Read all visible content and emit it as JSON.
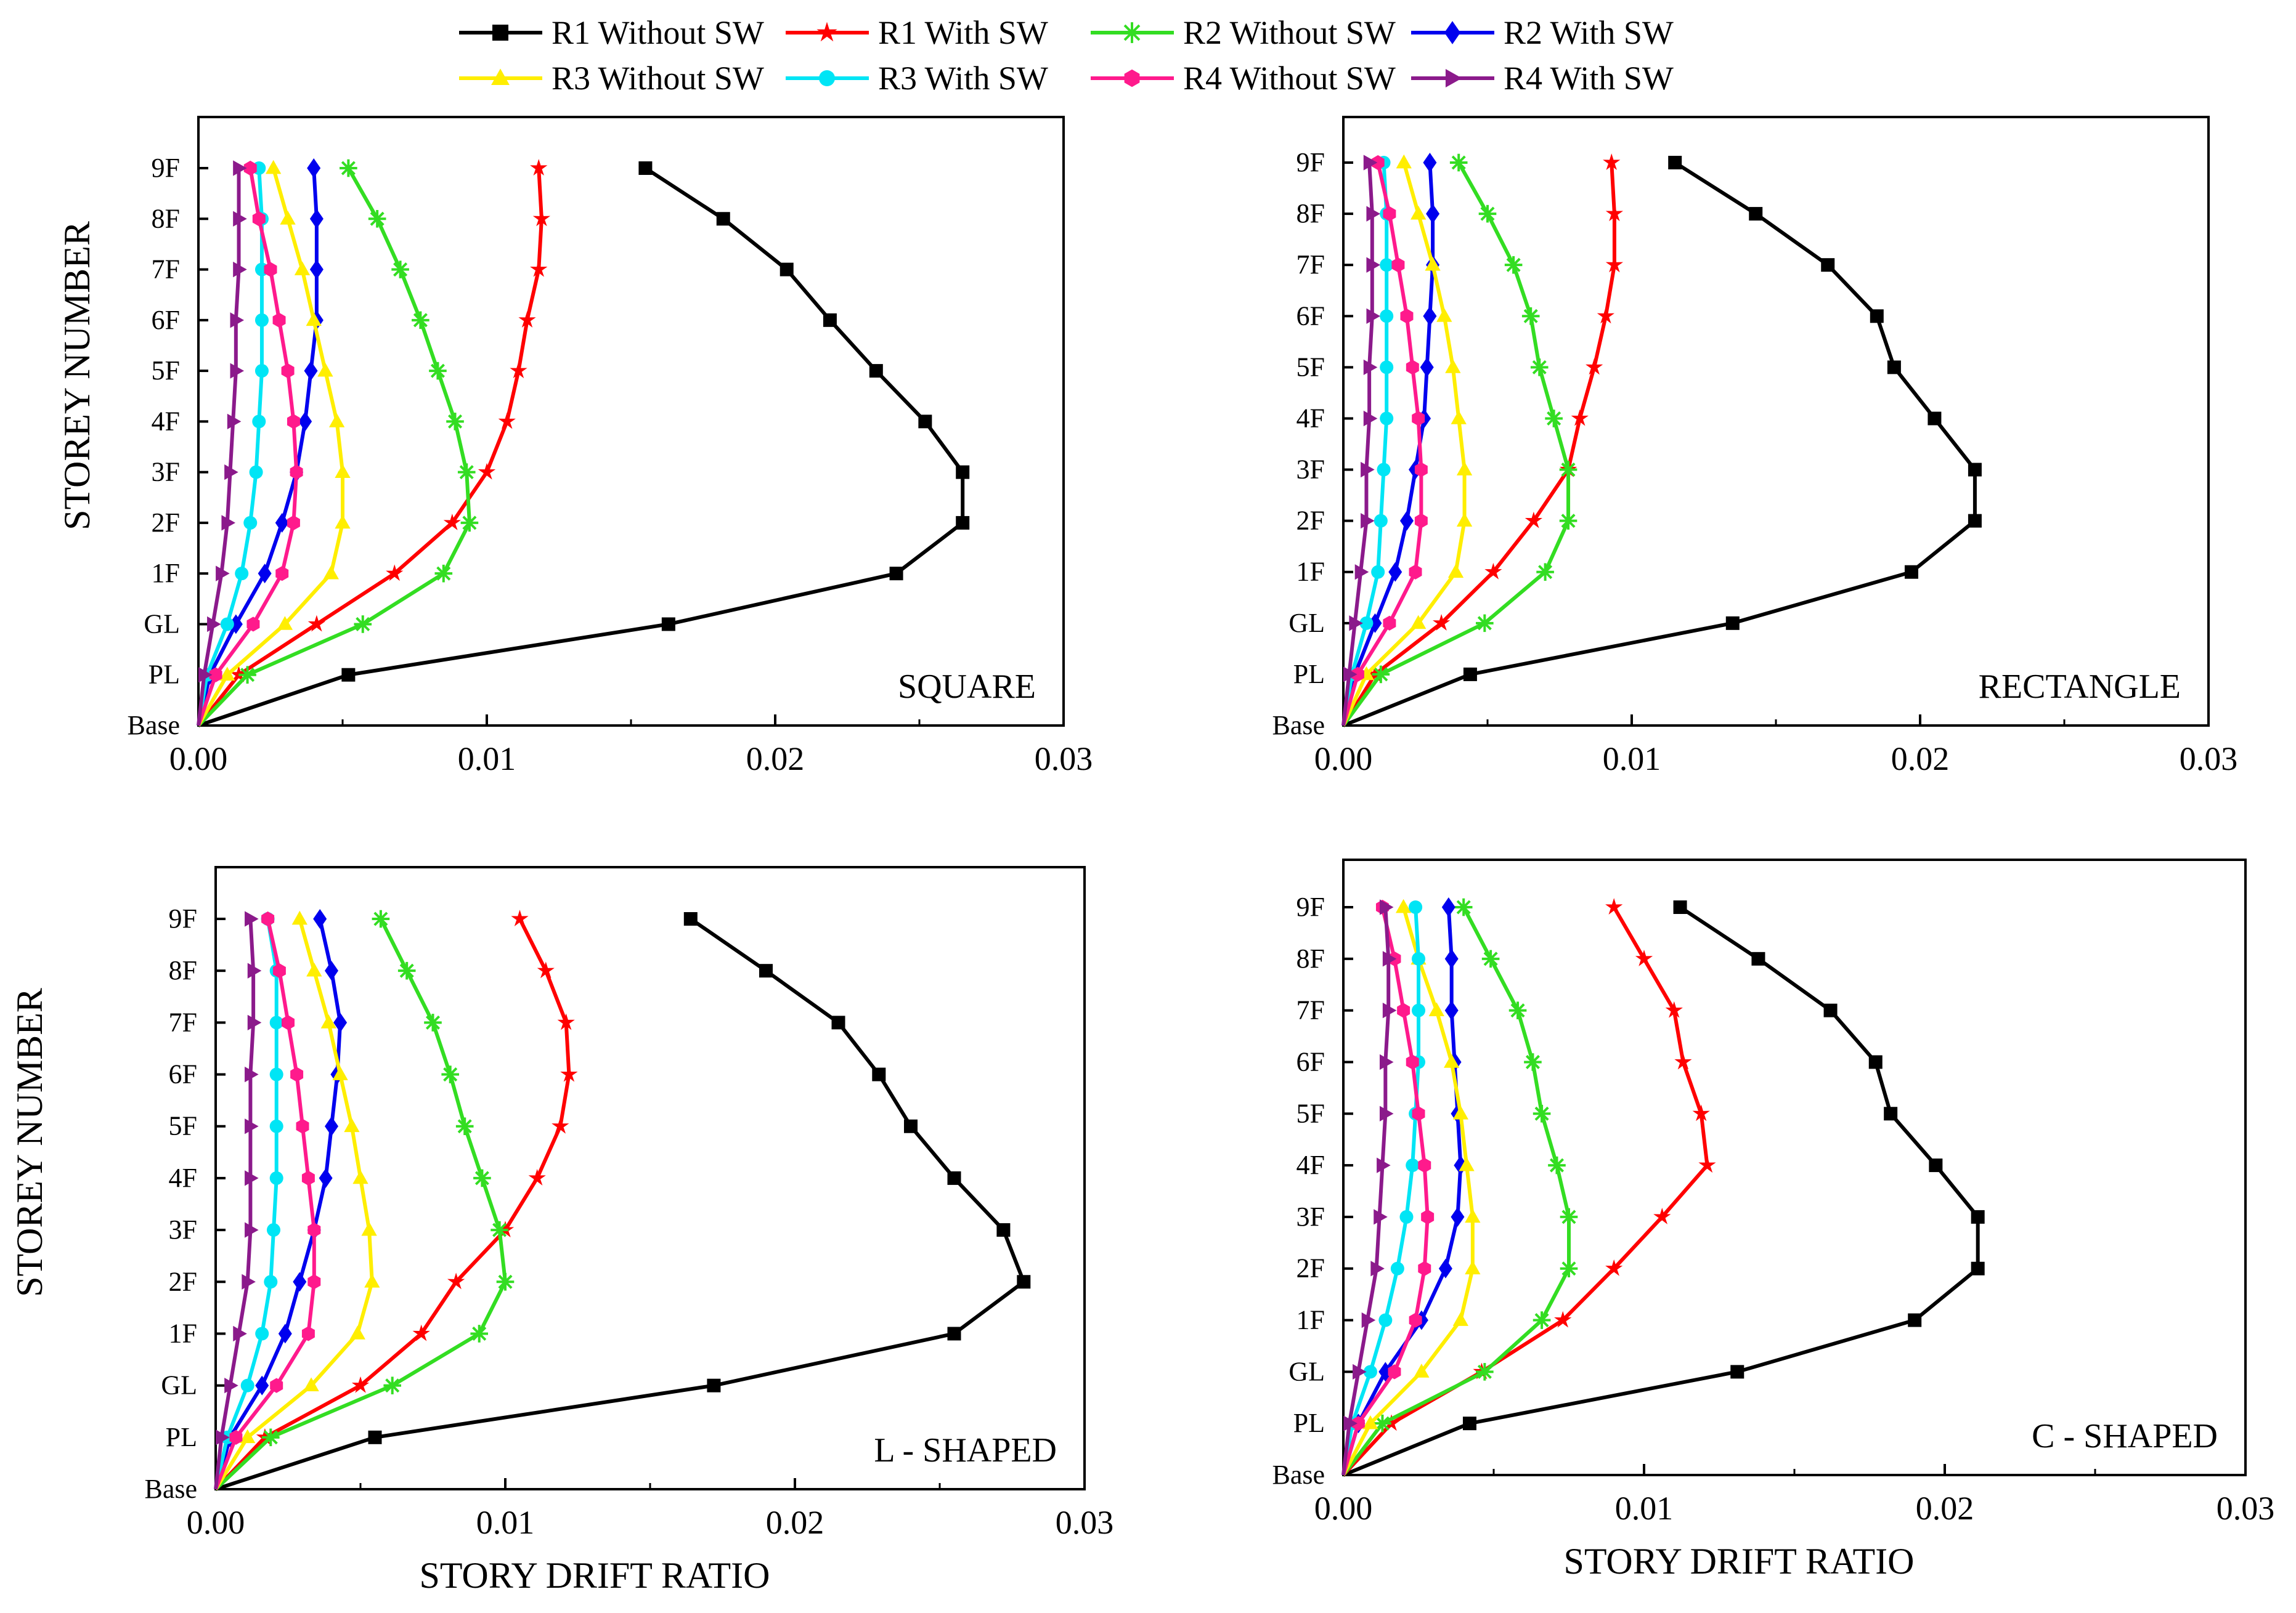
{
  "legend": [
    {
      "name": "R1 Without SW",
      "color": "#000000",
      "marker": "square"
    },
    {
      "name": "R1 With SW",
      "color": "#ff0000",
      "marker": "star"
    },
    {
      "name": "R2 Without SW",
      "color": "#33dd22",
      "marker": "asterisk"
    },
    {
      "name": "R2 With SW",
      "color": "#0000ee",
      "marker": "diamond"
    },
    {
      "name": "R3 Without SW",
      "color": "#ffee00",
      "marker": "triangle-up"
    },
    {
      "name": "R3 With SW",
      "color": "#00e5f5",
      "marker": "circle"
    },
    {
      "name": "R4 Without SW",
      "color": "#ff1a8c",
      "marker": "hexagon"
    },
    {
      "name": "R4 With SW",
      "color": "#8b1a8b",
      "marker": "triangle-right"
    }
  ],
  "chart_data": [
    {
      "type": "line",
      "panel_label": "SQUARE",
      "ylabel": "STOREY NUMBER",
      "xlabel": "",
      "xlim": [
        0,
        0.03
      ],
      "x_ticks": [
        "0.00",
        "0.01",
        "0.02",
        "0.03"
      ],
      "categories": [
        "Base",
        "PL",
        "GL",
        "1F",
        "2F",
        "3F",
        "4F",
        "5F",
        "6F",
        "7F",
        "8F",
        "9F"
      ],
      "series": [
        {
          "name": "R1 Without SW",
          "values": [
            0,
            0.0052,
            0.0163,
            0.0242,
            0.0265,
            0.0265,
            0.0252,
            0.0235,
            0.0219,
            0.0204,
            0.0182,
            0.0155
          ]
        },
        {
          "name": "R1 With SW",
          "values": [
            0,
            0.0014,
            0.0041,
            0.0068,
            0.0088,
            0.01,
            0.0107,
            0.0111,
            0.0114,
            0.0118,
            0.0119,
            0.0118
          ]
        },
        {
          "name": "R2 Without SW",
          "values": [
            0,
            0.0017,
            0.0057,
            0.0085,
            0.0094,
            0.0093,
            0.0089,
            0.0083,
            0.0077,
            0.007,
            0.0062,
            0.0052
          ]
        },
        {
          "name": "R2 With SW",
          "values": [
            0,
            0.0004,
            0.0013,
            0.0023,
            0.0029,
            0.0034,
            0.0037,
            0.0039,
            0.0041,
            0.0041,
            0.0041,
            0.004
          ]
        },
        {
          "name": "R3 Without SW",
          "values": [
            0,
            0.001,
            0.003,
            0.0046,
            0.005,
            0.005,
            0.0048,
            0.0044,
            0.004,
            0.0036,
            0.0031,
            0.0026
          ]
        },
        {
          "name": "R3 With SW",
          "values": [
            0,
            0.0003,
            0.001,
            0.0015,
            0.0018,
            0.002,
            0.0021,
            0.0022,
            0.0022,
            0.0022,
            0.0022,
            0.0021
          ]
        },
        {
          "name": "R4 Without SW",
          "values": [
            0,
            0.0006,
            0.0019,
            0.0029,
            0.0033,
            0.0034,
            0.0033,
            0.0031,
            0.0028,
            0.0025,
            0.0021,
            0.0018
          ]
        },
        {
          "name": "R4 With SW",
          "values": [
            0,
            0.0002,
            0.0005,
            0.0008,
            0.001,
            0.0011,
            0.0012,
            0.0013,
            0.0013,
            0.0014,
            0.0014,
            0.0014
          ]
        }
      ]
    },
    {
      "type": "line",
      "panel_label": "RECTANGLE",
      "ylabel": "",
      "xlabel": "",
      "xlim": [
        0,
        0.03
      ],
      "x_ticks": [
        "0.00",
        "0.01",
        "0.02",
        "0.03"
      ],
      "categories": [
        "Base",
        "PL",
        "GL",
        "1F",
        "2F",
        "3F",
        "4F",
        "5F",
        "6F",
        "7F",
        "8F",
        "9F"
      ],
      "series": [
        {
          "name": "R1 Without SW",
          "values": [
            0,
            0.0044,
            0.0135,
            0.0197,
            0.0219,
            0.0219,
            0.0205,
            0.0191,
            0.0185,
            0.0168,
            0.0143,
            0.0115
          ]
        },
        {
          "name": "R1 With SW",
          "values": [
            0,
            0.0011,
            0.0034,
            0.0052,
            0.0066,
            0.0078,
            0.0082,
            0.0087,
            0.0091,
            0.0094,
            0.0094,
            0.0093
          ]
        },
        {
          "name": "R2 Without SW",
          "values": [
            0,
            0.0013,
            0.0049,
            0.007,
            0.0078,
            0.0078,
            0.0073,
            0.0068,
            0.0065,
            0.0059,
            0.005,
            0.004
          ]
        },
        {
          "name": "R2 With SW",
          "values": [
            0,
            0.0004,
            0.0011,
            0.0018,
            0.0022,
            0.0025,
            0.0028,
            0.0029,
            0.003,
            0.0031,
            0.0031,
            0.003
          ]
        },
        {
          "name": "R3 Without SW",
          "values": [
            0,
            0.0008,
            0.0026,
            0.0039,
            0.0042,
            0.0042,
            0.004,
            0.0038,
            0.0035,
            0.0031,
            0.0026,
            0.0021
          ]
        },
        {
          "name": "R3 With SW",
          "values": [
            0,
            0.0003,
            0.0008,
            0.0012,
            0.0013,
            0.0014,
            0.0015,
            0.0015,
            0.0015,
            0.0015,
            0.0015,
            0.0014
          ]
        },
        {
          "name": "R4 Without SW",
          "values": [
            0,
            0.0005,
            0.0016,
            0.0025,
            0.0027,
            0.0027,
            0.0026,
            0.0024,
            0.0022,
            0.0019,
            0.0016,
            0.0012
          ]
        },
        {
          "name": "R4 With SW",
          "values": [
            0,
            0.0002,
            0.0004,
            0.0006,
            0.0008,
            0.0008,
            0.0009,
            0.0009,
            0.001,
            0.001,
            0.001,
            0.0009
          ]
        }
      ]
    },
    {
      "type": "line",
      "panel_label": "L - SHAPED",
      "ylabel": "STOREY NUMBER",
      "xlabel": "STORY DRIFT RATIO",
      "xlim": [
        0,
        0.03
      ],
      "x_ticks": [
        "0.00",
        "0.01",
        "0.02",
        "0.03"
      ],
      "categories": [
        "Base",
        "PL",
        "GL",
        "1F",
        "2F",
        "3F",
        "4F",
        "5F",
        "6F",
        "7F",
        "8F",
        "9F"
      ],
      "series": [
        {
          "name": "R1 Without SW",
          "values": [
            0,
            0.0055,
            0.0172,
            0.0255,
            0.0279,
            0.0272,
            0.0255,
            0.024,
            0.0229,
            0.0215,
            0.019,
            0.0164
          ]
        },
        {
          "name": "R1 With SW",
          "values": [
            0,
            0.0017,
            0.005,
            0.0071,
            0.0083,
            0.01,
            0.0111,
            0.0119,
            0.0122,
            0.0121,
            0.0114,
            0.0105
          ]
        },
        {
          "name": "R2 Without SW",
          "values": [
            0,
            0.0019,
            0.0061,
            0.0091,
            0.01,
            0.0098,
            0.0092,
            0.0086,
            0.0081,
            0.0075,
            0.0066,
            0.0057
          ]
        },
        {
          "name": "R2 With SW",
          "values": [
            0,
            0.0005,
            0.0016,
            0.0024,
            0.0029,
            0.0034,
            0.0038,
            0.004,
            0.0042,
            0.0043,
            0.004,
            0.0036
          ]
        },
        {
          "name": "R3 Without SW",
          "values": [
            0,
            0.0011,
            0.0033,
            0.0049,
            0.0054,
            0.0053,
            0.005,
            0.0047,
            0.0043,
            0.0039,
            0.0034,
            0.0029
          ]
        },
        {
          "name": "R3 With SW",
          "values": [
            0,
            0.0004,
            0.0011,
            0.0016,
            0.0019,
            0.002,
            0.0021,
            0.0021,
            0.0021,
            0.0021,
            0.0021,
            0.0018
          ]
        },
        {
          "name": "R4 Without SW",
          "values": [
            0,
            0.0007,
            0.0021,
            0.0032,
            0.0034,
            0.0034,
            0.0032,
            0.003,
            0.0028,
            0.0025,
            0.0022,
            0.0018
          ]
        },
        {
          "name": "R4 With SW",
          "values": [
            0,
            0.0002,
            0.0005,
            0.0008,
            0.0011,
            0.0012,
            0.0012,
            0.0012,
            0.0012,
            0.0013,
            0.0013,
            0.0012
          ]
        }
      ]
    },
    {
      "type": "line",
      "panel_label": "C - SHAPED",
      "ylabel": "",
      "xlabel": "STORY DRIFT RATIO",
      "xlim": [
        0,
        0.03
      ],
      "x_ticks": [
        "0.00",
        "0.01",
        "0.02",
        "0.03"
      ],
      "categories": [
        "Base",
        "PL",
        "GL",
        "1F",
        "2F",
        "3F",
        "4F",
        "5F",
        "6F",
        "7F",
        "8F",
        "9F"
      ],
      "series": [
        {
          "name": "R1 Without SW",
          "values": [
            0,
            0.0042,
            0.0131,
            0.019,
            0.0211,
            0.0211,
            0.0197,
            0.0182,
            0.0177,
            0.0162,
            0.0138,
            0.0112
          ]
        },
        {
          "name": "R1 With SW",
          "values": [
            0,
            0.0016,
            0.0046,
            0.0073,
            0.009,
            0.0106,
            0.0121,
            0.0119,
            0.0113,
            0.011,
            0.01,
            0.009
          ]
        },
        {
          "name": "R2 Without SW",
          "values": [
            0,
            0.0013,
            0.0047,
            0.0066,
            0.0075,
            0.0075,
            0.0071,
            0.0066,
            0.0063,
            0.0058,
            0.0049,
            0.004
          ]
        },
        {
          "name": "R2 With SW",
          "values": [
            0,
            0.0005,
            0.0014,
            0.0026,
            0.0034,
            0.0038,
            0.0039,
            0.0038,
            0.0037,
            0.0036,
            0.0036,
            0.0035
          ]
        },
        {
          "name": "R3 Without SW",
          "values": [
            0,
            0.0009,
            0.0026,
            0.0039,
            0.0043,
            0.0043,
            0.0041,
            0.0039,
            0.0036,
            0.0031,
            0.0025,
            0.002
          ]
        },
        {
          "name": "R3 With SW",
          "values": [
            0,
            0.0003,
            0.0009,
            0.0014,
            0.0018,
            0.0021,
            0.0023,
            0.0024,
            0.0025,
            0.0025,
            0.0025,
            0.0024
          ]
        },
        {
          "name": "R4 Without SW",
          "values": [
            0,
            0.0005,
            0.0017,
            0.0024,
            0.0027,
            0.0028,
            0.0027,
            0.0025,
            0.0023,
            0.002,
            0.0017,
            0.0013
          ]
        },
        {
          "name": "R4 With SW",
          "values": [
            0,
            0.0002,
            0.0005,
            0.0008,
            0.0011,
            0.0012,
            0.0013,
            0.0014,
            0.0014,
            0.0015,
            0.0015,
            0.0014
          ]
        }
      ]
    }
  ]
}
